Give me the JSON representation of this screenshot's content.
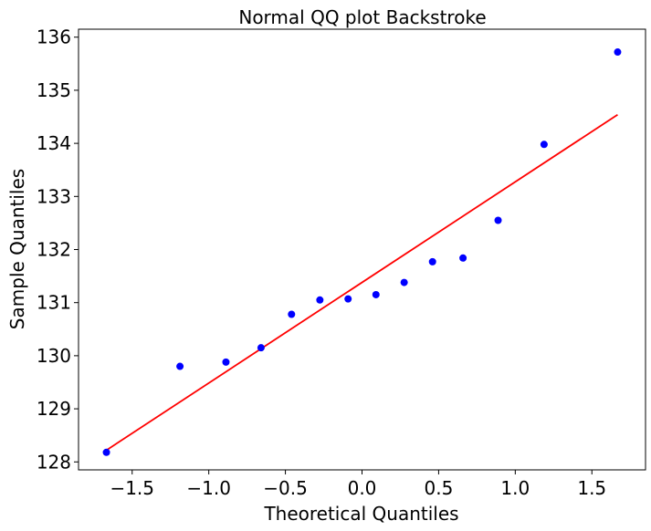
{
  "chart_data": {
    "type": "scatter",
    "title": "Normal QQ plot Backstroke",
    "xlabel": "Theoretical Quantiles",
    "ylabel": "Sample Quantiles",
    "xlim": [
      -1.85,
      1.85
    ],
    "ylim": [
      127.85,
      136.15
    ],
    "grid": false,
    "x_ticks": [
      -1.5,
      -1.0,
      -0.5,
      0.0,
      0.5,
      1.0,
      1.5
    ],
    "x_tick_labels": [
      "−1.5",
      "−1.0",
      "−0.5",
      "0.0",
      "0.5",
      "1.0",
      "1.5"
    ],
    "y_ticks": [
      128,
      129,
      130,
      131,
      132,
      133,
      134,
      135,
      136
    ],
    "y_tick_labels": [
      "128",
      "129",
      "130",
      "131",
      "132",
      "133",
      "134",
      "135",
      "136"
    ],
    "series": [
      {
        "kind": "points",
        "color": "#0000ff",
        "x": [
          -1.668,
          -1.188,
          -0.888,
          -0.659,
          -0.46,
          -0.275,
          -0.091,
          0.091,
          0.275,
          0.46,
          0.659,
          0.888,
          1.188,
          1.668
        ],
        "y": [
          128.18,
          129.8,
          129.88,
          130.15,
          130.78,
          131.05,
          131.07,
          131.15,
          131.38,
          131.77,
          131.84,
          132.55,
          133.98,
          135.72
        ]
      },
      {
        "kind": "line",
        "color": "#ff0000",
        "x": [
          -1.668,
          1.668
        ],
        "y": [
          128.22,
          134.54
        ]
      }
    ]
  }
}
